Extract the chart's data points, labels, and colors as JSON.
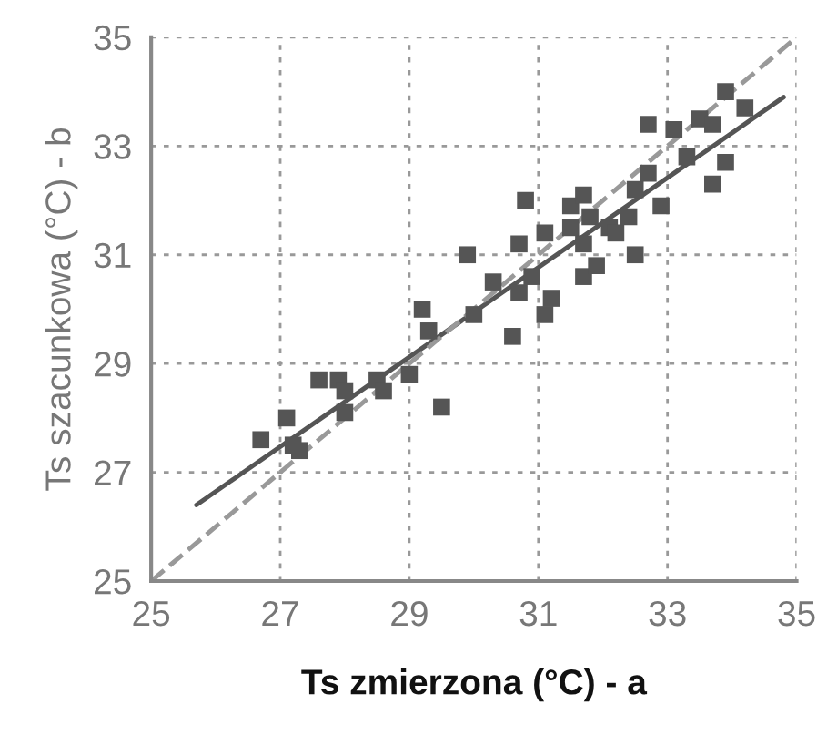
{
  "chart_data": {
    "type": "scatter",
    "xlabel": "Ts zmierzona (°C) - a",
    "ylabel": "Ts szacunkowa (°C) - b",
    "xlim": [
      25,
      35
    ],
    "ylim": [
      25,
      35
    ],
    "xticks": [
      25,
      27,
      29,
      31,
      33,
      35
    ],
    "yticks": [
      25,
      27,
      29,
      31,
      33,
      35
    ],
    "grid": true,
    "series": [
      {
        "marker": "square",
        "color": "#555555",
        "x": [
          26.7,
          27.1,
          27.3,
          27.2,
          27.6,
          27.9,
          28.0,
          28.0,
          28.5,
          28.6,
          29.0,
          29.2,
          29.3,
          29.5,
          29.9,
          30.0,
          30.3,
          30.6,
          30.7,
          30.7,
          30.8,
          30.9,
          31.1,
          31.2,
          31.1,
          31.5,
          31.5,
          31.7,
          31.7,
          31.9,
          31.8,
          31.7,
          32.1,
          32.2,
          32.5,
          32.4,
          32.5,
          32.7,
          32.9,
          32.7,
          33.1,
          33.3,
          33.5,
          33.7,
          33.7,
          33.9,
          33.9,
          34.2
        ],
        "values": [
          27.6,
          28.0,
          27.4,
          27.5,
          28.7,
          28.7,
          28.5,
          28.1,
          28.7,
          28.5,
          28.8,
          30.0,
          29.6,
          28.2,
          31.0,
          29.9,
          30.5,
          29.5,
          30.3,
          31.2,
          32.0,
          30.6,
          29.9,
          30.2,
          31.4,
          31.5,
          31.9,
          32.1,
          30.6,
          30.8,
          31.7,
          31.2,
          31.5,
          31.4,
          31.0,
          31.7,
          32.2,
          32.5,
          31.9,
          33.4,
          33.3,
          32.8,
          33.5,
          33.4,
          32.3,
          32.7,
          34.0,
          33.7
        ]
      },
      {
        "type": "line",
        "color": "#555555",
        "line_style": "solid",
        "marker": "none",
        "x": [
          25.7,
          34.8
        ],
        "values": [
          26.4,
          33.9
        ]
      },
      {
        "type": "line",
        "color": "#999999",
        "line_style": "dashed",
        "marker": "none",
        "x": [
          25,
          35
        ],
        "values": [
          25,
          35
        ]
      }
    ]
  }
}
